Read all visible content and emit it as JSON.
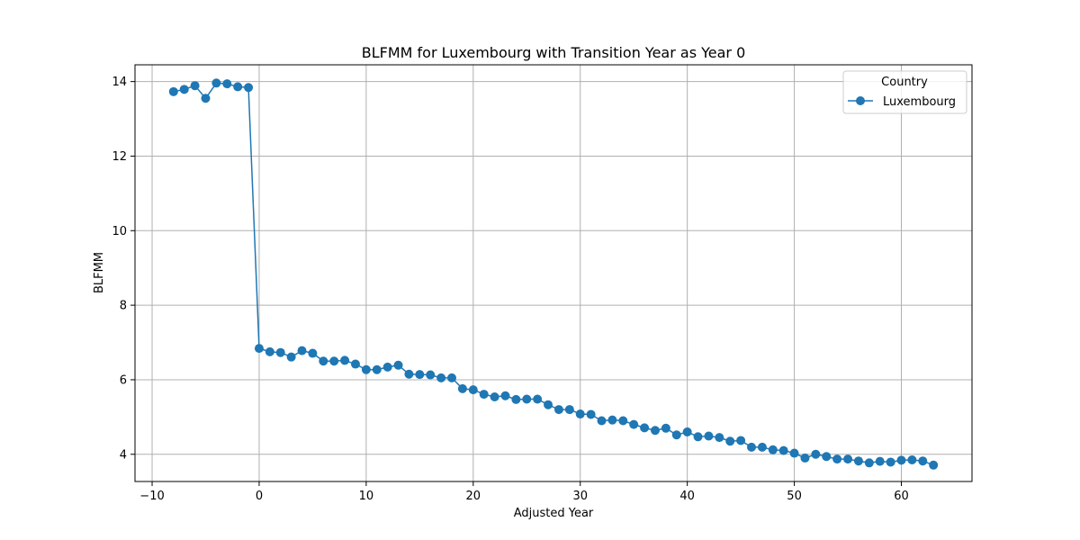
{
  "chart_data": {
    "type": "line",
    "title": "BLFMM for Luxembourg with Transition Year as Year 0",
    "xlabel": "Adjusted Year",
    "ylabel": "BLFMM",
    "xlim": [
      -11.6,
      66.6
    ],
    "ylim": [
      3.27,
      14.45
    ],
    "xticks": [
      -10,
      0,
      10,
      20,
      30,
      40,
      50,
      60
    ],
    "yticks": [
      4,
      6,
      8,
      10,
      12,
      14
    ],
    "grid": true,
    "legend": {
      "title": "Country",
      "placement": "top-right"
    },
    "series": [
      {
        "name": "Luxembourg",
        "color": "#1f77b4",
        "marker": "circle",
        "x": [
          -8,
          -7,
          -6,
          -5,
          -4,
          -3,
          -2,
          -1,
          0,
          1,
          2,
          3,
          4,
          5,
          6,
          7,
          8,
          9,
          10,
          11,
          12,
          13,
          14,
          15,
          16,
          17,
          18,
          19,
          20,
          21,
          22,
          23,
          24,
          25,
          26,
          27,
          28,
          29,
          30,
          31,
          32,
          33,
          34,
          35,
          36,
          37,
          38,
          39,
          40,
          41,
          42,
          43,
          44,
          45,
          46,
          47,
          48,
          49,
          50,
          51,
          52,
          53,
          54,
          55,
          56,
          57,
          58,
          59,
          60,
          61,
          62,
          63
        ],
        "y": [
          13.73,
          13.79,
          13.89,
          13.55,
          13.96,
          13.94,
          13.86,
          13.84,
          6.84,
          6.75,
          6.73,
          6.61,
          6.78,
          6.71,
          6.5,
          6.5,
          6.52,
          6.42,
          6.27,
          6.27,
          6.34,
          6.39,
          6.15,
          6.14,
          6.13,
          6.05,
          6.05,
          5.76,
          5.73,
          5.61,
          5.54,
          5.57,
          5.47,
          5.48,
          5.48,
          5.33,
          5.2,
          5.2,
          5.08,
          5.07,
          4.9,
          4.92,
          4.9,
          4.8,
          4.71,
          4.64,
          4.7,
          4.52,
          4.6,
          4.47,
          4.49,
          4.45,
          4.35,
          4.37,
          4.19,
          4.19,
          4.12,
          4.1,
          4.03,
          3.9,
          4.0,
          3.94,
          3.87,
          3.87,
          3.82,
          3.77,
          3.81,
          3.79,
          3.84,
          3.85,
          3.82,
          3.71
        ]
      }
    ]
  }
}
